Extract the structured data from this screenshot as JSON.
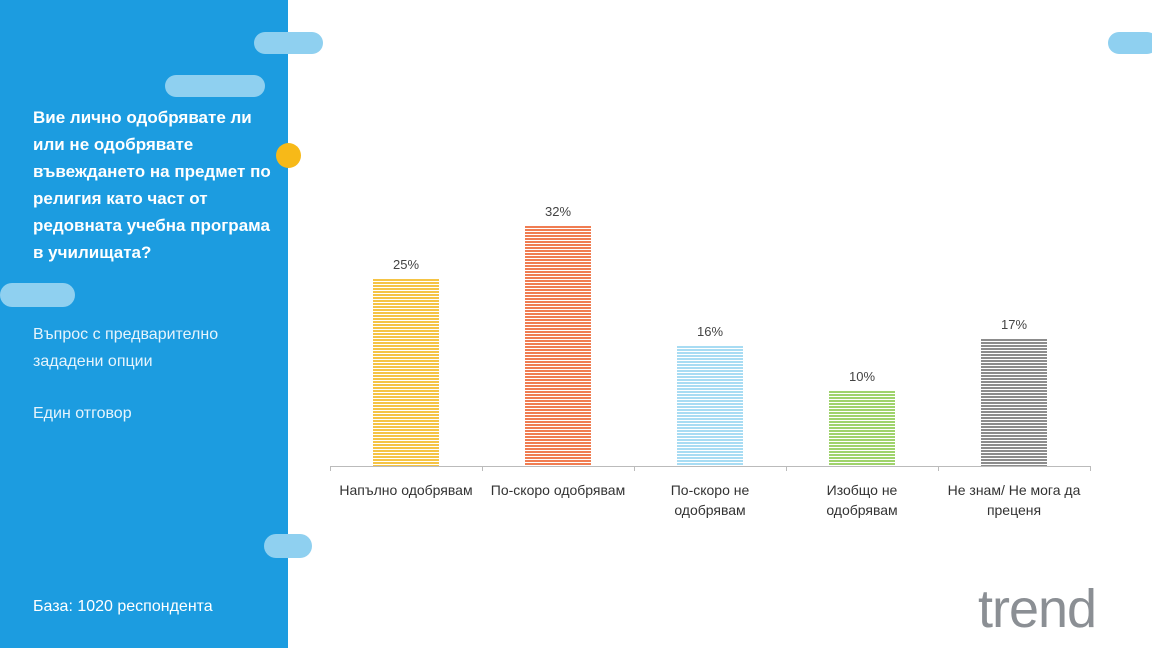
{
  "panel": {
    "question": "Вие лично одобрявате ли или не одобрявате въвеждането на предмет по религия като част от редовната учебна програма в училищата?",
    "note1": "Въпрос с предварително зададени опции",
    "note2": "Един отговор",
    "base": "База:  1020 респондента"
  },
  "logo": "trend",
  "chart_data": {
    "type": "bar",
    "categories": [
      "Напълно одобрявам",
      "По-скоро одобрявам",
      "По-скоро не одобрявам",
      "Изобщо не одобрявам",
      "Не знам/ Не мога да преценя"
    ],
    "values": [
      25,
      32,
      16,
      10,
      17
    ],
    "value_labels": [
      "25%",
      "32%",
      "16%",
      "10%",
      "17%"
    ],
    "colors": [
      "#f5c445",
      "#f07d52",
      "#a8dcf3",
      "#9fd36c",
      "#8c8c8c"
    ]
  }
}
